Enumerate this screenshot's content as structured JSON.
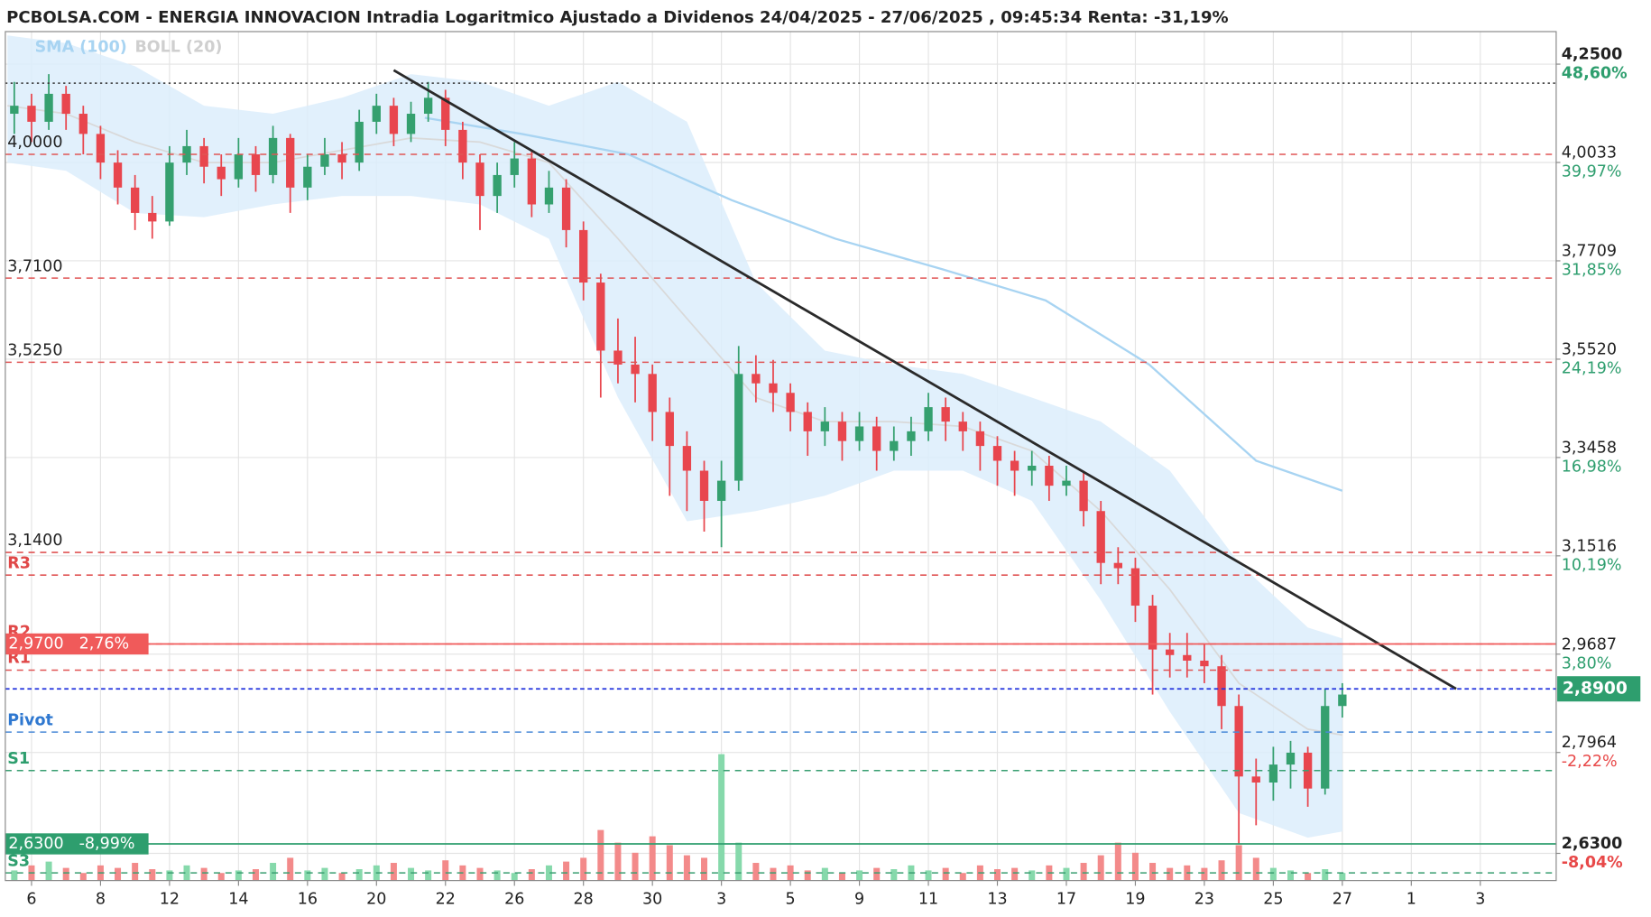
{
  "chart_data": {
    "type": "candlestick",
    "title": "PCBOLSA.COM - ENERGIA INNOVACION Intradia Logaritmico Ajustado a Dividenos 24/04/2025 - 27/06/2025 , 09:45:34 Renta: -31,19%",
    "log_scale": true,
    "grid": true,
    "xlim": [
      -0.76,
      44.2
    ],
    "xticks": [
      {
        "value": 0,
        "label": "6"
      },
      {
        "value": 2,
        "label": "8"
      },
      {
        "value": 4,
        "label": "12"
      },
      {
        "value": 6,
        "label": "14"
      },
      {
        "value": 8,
        "label": "16"
      },
      {
        "value": 10,
        "label": "20"
      },
      {
        "value": 12,
        "label": "22"
      },
      {
        "value": 14,
        "label": "26"
      },
      {
        "value": 16,
        "label": "28"
      },
      {
        "value": 18,
        "label": "30"
      },
      {
        "value": 20,
        "label": "3"
      },
      {
        "value": 22,
        "label": "5"
      },
      {
        "value": 24,
        "label": "9"
      },
      {
        "value": 26,
        "label": "11"
      },
      {
        "value": 28,
        "label": "13"
      },
      {
        "value": 30,
        "label": "17"
      },
      {
        "value": 32,
        "label": "19"
      },
      {
        "value": 34,
        "label": "23"
      },
      {
        "value": 36,
        "label": "25"
      },
      {
        "value": 38,
        "label": "27"
      },
      {
        "value": 40,
        "label": "1"
      },
      {
        "value": 42,
        "label": "3"
      }
    ],
    "ylim": [
      2.572,
      4.31
    ],
    "yticks": [
      {
        "value": 4.25,
        "label": "4,2500"
      },
      {
        "value": 4.0033,
        "label": "4,0033"
      },
      {
        "value": 3.7709,
        "label": "3,7709"
      },
      {
        "value": 3.552,
        "label": "3,5520"
      },
      {
        "value": 3.3458,
        "label": "3,3458"
      },
      {
        "value": 3.1516,
        "label": "3,1516"
      },
      {
        "value": 2.9687,
        "label": "2,9687"
      },
      {
        "value": 2.7964,
        "label": "2,7964"
      },
      {
        "value": 2.63,
        "label": "2,6300"
      }
    ],
    "ytick_percent_labels": [
      "48,60%",
      "39,97%",
      "31,85%",
      "24,19%",
      "16,98%",
      "10,19%",
      "3,80%",
      "-2,22%",
      "-8,04%"
    ],
    "up_color": "#35a06f",
    "down_color": "#e8464e",
    "x": [
      -0.5,
      0,
      0.5,
      1,
      1.5,
      2,
      2.5,
      3,
      3.5,
      4,
      4.5,
      5,
      5.5,
      6,
      6.5,
      7,
      7.5,
      8,
      8.5,
      9,
      9.5,
      10,
      10.5,
      11,
      11.5,
      12,
      12.5,
      13,
      13.5,
      14,
      14.5,
      15,
      15.5,
      16,
      16.5,
      17,
      17.5,
      18,
      18.5,
      19,
      19.5,
      20,
      20.5,
      21,
      21.5,
      22,
      22.5,
      23,
      23.5,
      24,
      24.5,
      25,
      25.5,
      26,
      26.5,
      27,
      27.5,
      28,
      28.5,
      29,
      29.5,
      30,
      30.5,
      31,
      31.5,
      32,
      32.5,
      33,
      33.5,
      34,
      34.5,
      35,
      35.5,
      36,
      36.5,
      37,
      37.5,
      38
    ],
    "ohlc": [
      [
        4.1,
        4.18,
        4.05,
        4.12
      ],
      [
        4.12,
        4.15,
        4.03,
        4.08
      ],
      [
        4.08,
        4.2,
        4.06,
        4.15
      ],
      [
        4.15,
        4.17,
        4.06,
        4.1
      ],
      [
        4.1,
        4.12,
        4.0,
        4.05
      ],
      [
        4.05,
        4.07,
        3.94,
        3.98
      ],
      [
        3.98,
        4.01,
        3.88,
        3.92
      ],
      [
        3.92,
        3.95,
        3.82,
        3.86
      ],
      [
        3.86,
        3.9,
        3.8,
        3.84
      ],
      [
        3.84,
        4.02,
        3.83,
        3.98
      ],
      [
        3.98,
        4.06,
        3.95,
        4.02
      ],
      [
        4.02,
        4.04,
        3.93,
        3.97
      ],
      [
        3.97,
        4.0,
        3.9,
        3.94
      ],
      [
        3.94,
        4.04,
        3.92,
        4.0
      ],
      [
        4.0,
        4.02,
        3.91,
        3.95
      ],
      [
        3.95,
        4.07,
        3.93,
        4.04
      ],
      [
        4.04,
        4.05,
        3.86,
        3.92
      ],
      [
        3.92,
        4.0,
        3.89,
        3.97
      ],
      [
        3.97,
        4.04,
        3.95,
        4.0
      ],
      [
        4.0,
        4.03,
        3.94,
        3.98
      ],
      [
        3.98,
        4.11,
        3.96,
        4.08
      ],
      [
        4.08,
        4.15,
        4.05,
        4.12
      ],
      [
        4.12,
        4.14,
        4.02,
        4.05
      ],
      [
        4.05,
        4.13,
        4.03,
        4.1
      ],
      [
        4.1,
        4.18,
        4.08,
        4.14
      ],
      [
        4.14,
        4.16,
        4.02,
        4.06
      ],
      [
        4.06,
        4.08,
        3.94,
        3.98
      ],
      [
        3.98,
        4.0,
        3.82,
        3.9
      ],
      [
        3.9,
        3.98,
        3.86,
        3.95
      ],
      [
        3.95,
        4.03,
        3.92,
        3.99
      ],
      [
        3.99,
        4.01,
        3.85,
        3.88
      ],
      [
        3.88,
        3.96,
        3.86,
        3.92
      ],
      [
        3.92,
        3.94,
        3.78,
        3.82
      ],
      [
        3.82,
        3.84,
        3.66,
        3.7
      ],
      [
        3.7,
        3.72,
        3.45,
        3.55
      ],
      [
        3.55,
        3.62,
        3.48,
        3.52
      ],
      [
        3.52,
        3.58,
        3.44,
        3.5
      ],
      [
        3.5,
        3.52,
        3.36,
        3.42
      ],
      [
        3.42,
        3.45,
        3.25,
        3.35
      ],
      [
        3.35,
        3.38,
        3.22,
        3.3
      ],
      [
        3.3,
        3.32,
        3.18,
        3.24
      ],
      [
        3.24,
        3.32,
        3.15,
        3.28
      ],
      [
        3.28,
        3.56,
        3.26,
        3.5
      ],
      [
        3.5,
        3.54,
        3.44,
        3.48
      ],
      [
        3.48,
        3.53,
        3.42,
        3.46
      ],
      [
        3.46,
        3.48,
        3.38,
        3.42
      ],
      [
        3.42,
        3.44,
        3.33,
        3.38
      ],
      [
        3.38,
        3.43,
        3.35,
        3.4
      ],
      [
        3.4,
        3.42,
        3.32,
        3.36
      ],
      [
        3.36,
        3.42,
        3.34,
        3.39
      ],
      [
        3.39,
        3.41,
        3.3,
        3.34
      ],
      [
        3.34,
        3.39,
        3.32,
        3.36
      ],
      [
        3.36,
        3.41,
        3.33,
        3.38
      ],
      [
        3.38,
        3.46,
        3.36,
        3.43
      ],
      [
        3.43,
        3.45,
        3.36,
        3.4
      ],
      [
        3.4,
        3.42,
        3.34,
        3.38
      ],
      [
        3.38,
        3.4,
        3.3,
        3.35
      ],
      [
        3.35,
        3.37,
        3.27,
        3.32
      ],
      [
        3.32,
        3.34,
        3.25,
        3.3
      ],
      [
        3.3,
        3.34,
        3.27,
        3.31
      ],
      [
        3.31,
        3.33,
        3.24,
        3.27
      ],
      [
        3.27,
        3.31,
        3.25,
        3.28
      ],
      [
        3.28,
        3.3,
        3.19,
        3.22
      ],
      [
        3.22,
        3.24,
        3.08,
        3.12
      ],
      [
        3.12,
        3.15,
        3.08,
        3.11
      ],
      [
        3.11,
        3.13,
        3.01,
        3.04
      ],
      [
        3.04,
        3.06,
        2.88,
        2.96
      ],
      [
        2.96,
        2.99,
        2.91,
        2.95
      ],
      [
        2.95,
        2.99,
        2.91,
        2.94
      ],
      [
        2.94,
        2.97,
        2.9,
        2.93
      ],
      [
        2.93,
        2.95,
        2.82,
        2.86
      ],
      [
        2.86,
        2.88,
        2.63,
        2.74
      ],
      [
        2.74,
        2.77,
        2.66,
        2.73
      ],
      [
        2.73,
        2.79,
        2.7,
        2.76
      ],
      [
        2.76,
        2.8,
        2.72,
        2.78
      ],
      [
        2.78,
        2.79,
        2.69,
        2.72
      ],
      [
        2.72,
        2.89,
        2.71,
        2.86
      ],
      [
        2.86,
        2.9,
        2.84,
        2.88
      ]
    ],
    "volume": [
      8,
      12,
      15,
      10,
      6,
      12,
      10,
      14,
      9,
      8,
      12,
      10,
      6,
      8,
      9,
      14,
      18,
      8,
      10,
      6,
      9,
      12,
      14,
      10,
      8,
      16,
      12,
      10,
      8,
      6,
      9,
      12,
      15,
      18,
      40,
      30,
      22,
      35,
      28,
      20,
      18,
      100,
      30,
      14,
      10,
      12,
      8,
      10,
      6,
      8,
      10,
      9,
      12,
      8,
      10,
      6,
      12,
      9,
      10,
      8,
      12,
      10,
      14,
      20,
      30,
      22,
      14,
      10,
      12,
      10,
      16,
      28,
      18,
      10,
      8,
      6,
      9,
      6
    ],
    "bollinger": {
      "name": "BOLL (20)",
      "fill": "#dcedfb",
      "middle_color": "#d9d9d9",
      "x": [
        -0.7,
        1,
        3,
        5,
        7,
        9,
        11,
        13,
        15,
        17,
        19,
        21,
        23,
        25,
        27,
        29,
        31,
        33,
        35,
        37,
        38
      ],
      "upper": [
        4.3,
        4.28,
        4.22,
        4.12,
        4.1,
        4.14,
        4.2,
        4.18,
        4.12,
        4.18,
        4.08,
        3.7,
        3.55,
        3.52,
        3.5,
        3.45,
        3.4,
        3.3,
        3.12,
        3.0,
        2.98
      ],
      "middle": [
        4.12,
        4.1,
        4.03,
        3.98,
        3.98,
        4.01,
        4.04,
        4.03,
        3.98,
        3.8,
        3.62,
        3.45,
        3.4,
        3.4,
        3.39,
        3.34,
        3.22,
        3.07,
        2.9,
        2.82,
        2.81
      ],
      "lower": [
        3.98,
        3.96,
        3.86,
        3.85,
        3.88,
        3.9,
        3.9,
        3.88,
        3.8,
        3.45,
        3.2,
        3.22,
        3.25,
        3.3,
        3.3,
        3.24,
        3.05,
        2.85,
        2.68,
        2.64,
        2.65
      ]
    },
    "sma": {
      "name": "SMA (100)",
      "color": "#a8d4f2",
      "x": [
        11.4,
        14.2,
        17.3,
        20.3,
        23.3,
        26.4,
        29.4,
        32.4,
        35.5,
        38
      ],
      "values": [
        4.09,
        4.05,
        4.0,
        3.89,
        3.8,
        3.73,
        3.66,
        3.52,
        3.32,
        3.26
      ]
    },
    "trendline": {
      "x": [
        10.5,
        41.3
      ],
      "values": [
        4.21,
        2.89
      ],
      "color": "#2a2a2a"
    },
    "reference_line": {
      "value": 4.177,
      "color": "#333333"
    },
    "levels": [
      {
        "label": "4,0000",
        "value": 4.0,
        "color": "#e05555",
        "label_color": "#222222"
      },
      {
        "label": "3,7100",
        "value": 3.71,
        "color": "#e05555",
        "label_color": "#222222"
      },
      {
        "label": "3,5250",
        "value": 3.525,
        "color": "#e05555",
        "label_color": "#222222"
      },
      {
        "label": "3,1400",
        "value": 3.14,
        "color": "#e05555",
        "label_color": "#222222"
      },
      {
        "label": "R3",
        "value": 3.097,
        "color": "#e05555",
        "label_color": "#e04848"
      },
      {
        "label": "R2",
        "value": 2.97,
        "color": "#e05555",
        "label_color": "#e04848"
      },
      {
        "label": "R1",
        "value": 2.923,
        "color": "#e05555",
        "label_color": "#e04848"
      },
      {
        "label": "Pivot",
        "value": 2.815,
        "color": "#4a8ad8",
        "label_color": "#2f78d0"
      },
      {
        "label": "S1",
        "value": 2.75,
        "color": "#3a9f72",
        "label_color": "#2e9e6e"
      },
      {
        "label": "S3",
        "value": 2.584,
        "color": "#3a9f72",
        "label_color": "#2e9e6e"
      }
    ],
    "price_boxes": [
      {
        "label": "2,9700",
        "pct": "2,76%",
        "value": 2.97,
        "color": "#f05a5a"
      },
      {
        "label": "2,6300",
        "pct": "-8,99%",
        "value": 2.63,
        "color": "#2e9e6e"
      }
    ],
    "last_price": {
      "label": "2,8900",
      "value": 2.89,
      "color": "#2e9e6e",
      "line_color": "#2233dd"
    }
  }
}
